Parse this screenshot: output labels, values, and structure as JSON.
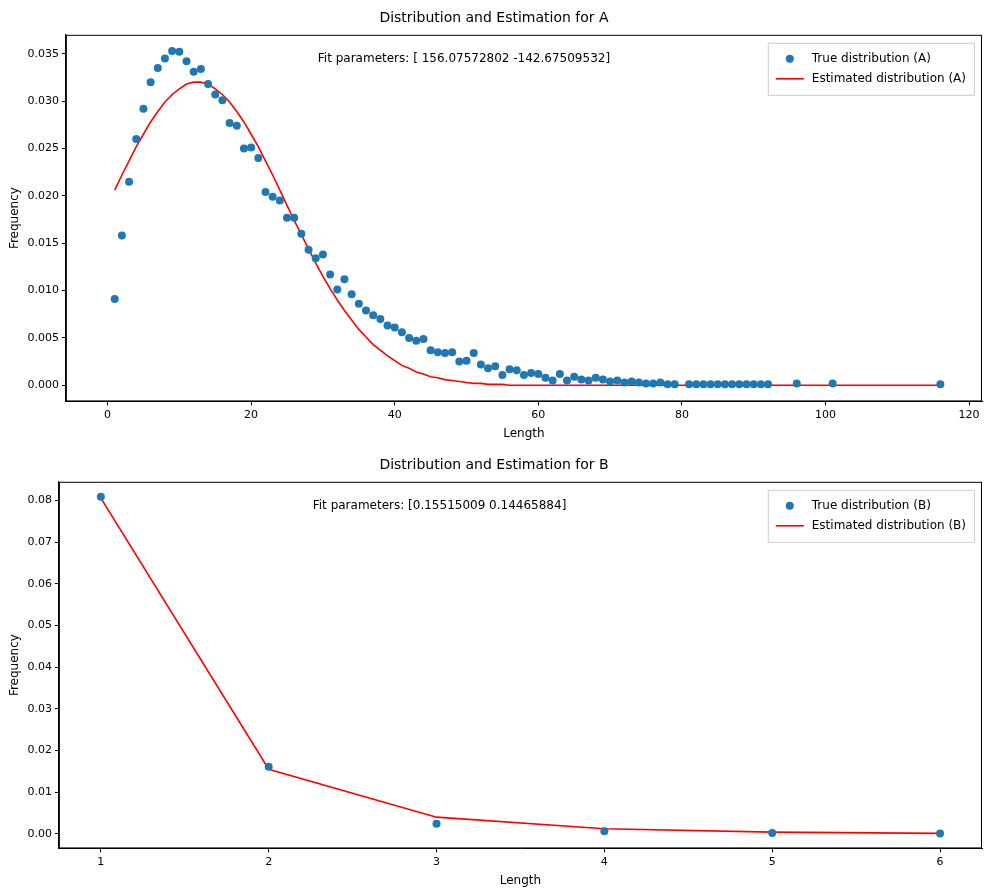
{
  "chart_data": [
    {
      "type": "scatter",
      "title": "Distribution and Estimation for A",
      "x_label": "Length",
      "y_label": "Frequency",
      "annotation": "Fit parameters: [ 156.07572802 -142.67509532]",
      "legend": "upper right",
      "grid": false,
      "xlim": [
        -5.8,
        121.8
      ],
      "xticks": [
        0,
        20,
        40,
        60,
        80,
        100,
        120
      ],
      "ylim": [
        -0.0017,
        0.037
      ],
      "yticks": [
        {
          "value": 0,
          "label": "0.000"
        },
        {
          "value": 0.005,
          "label": "0.005"
        },
        {
          "value": 0.01,
          "label": "0.010"
        },
        {
          "value": 0.015,
          "label": "0.015"
        },
        {
          "value": 0.02,
          "label": "0.020"
        },
        {
          "value": 0.025,
          "label": "0.025"
        },
        {
          "value": 0.03,
          "label": "0.030"
        },
        {
          "value": 0.035,
          "label": "0.035"
        }
      ],
      "x": [
        1,
        2,
        3,
        4,
        5,
        6,
        7,
        8,
        9,
        10,
        11,
        12,
        13,
        14,
        15,
        16,
        17,
        18,
        19,
        20,
        21,
        22,
        23,
        24,
        25,
        26,
        27,
        28,
        29,
        30,
        31,
        32,
        33,
        34,
        35,
        36,
        37,
        38,
        39,
        40,
        41,
        42,
        43,
        44,
        45,
        46,
        47,
        48,
        49,
        50,
        51,
        52,
        53,
        54,
        55,
        56,
        57,
        58,
        59,
        60,
        61,
        62,
        63,
        64,
        65,
        66,
        67,
        68,
        69,
        70,
        71,
        72,
        73,
        74,
        75,
        76,
        77,
        78,
        79,
        81,
        82,
        83,
        84,
        85,
        86,
        87,
        88,
        89,
        90,
        91,
        92,
        96,
        101,
        116
      ],
      "series": [
        {
          "name": "True distribution (A)",
          "color": "#1f77b4",
          "marker": "circle",
          "line_style": "none",
          "values": [
            0.0091,
            0.0158,
            0.0215,
            0.026,
            0.0292,
            0.032,
            0.0335,
            0.0345,
            0.0353,
            0.0352,
            0.0342,
            0.0331,
            0.0334,
            0.0318,
            0.0307,
            0.0301,
            0.0277,
            0.0274,
            0.025,
            0.0251,
            0.024,
            0.0204,
            0.0199,
            0.0195,
            0.0177,
            0.0177,
            0.016,
            0.0143,
            0.0134,
            0.0138,
            0.0117,
            0.0101,
            0.0112,
            0.0096,
            0.0086,
            0.0079,
            0.0074,
            0.007,
            0.0063,
            0.0061,
            0.0056,
            0.005,
            0.0047,
            0.0049,
            0.0037,
            0.0035,
            0.0034,
            0.0035,
            0.0025,
            0.0026,
            0.0034,
            0.0022,
            0.0018,
            0.002,
            0.0011,
            0.0017,
            0.0016,
            0.0011,
            0.0013,
            0.0012,
            0.0008,
            0.0005,
            0.0012,
            0.0005,
            0.0009,
            0.0006,
            0.0005,
            0.0008,
            0.0006,
            0.0004,
            0.0005,
            0.0003,
            0.0004,
            0.0003,
            0.0002,
            0.0002,
            0.0003,
            0.0001,
            0.0001,
            0.0001,
            0.0001,
            0.0001,
            0.0001,
            0.0001,
            0.0001,
            0.0001,
            0.0001,
            0.0001,
            0.0001,
            0.0001,
            0.0001,
            0.0002,
            0.0002,
            0.0001
          ]
        },
        {
          "name": "Estimated distribution (A)",
          "color": "#ff0000",
          "marker": "none",
          "line_style": "solid",
          "values": [
            0.0206,
            0.0222,
            0.0237,
            0.0252,
            0.0265,
            0.0278,
            0.0289,
            0.0299,
            0.0307,
            0.0313,
            0.0318,
            0.032,
            0.032,
            0.0318,
            0.0313,
            0.0307,
            0.0299,
            0.0289,
            0.0278,
            0.0265,
            0.0252,
            0.0237,
            0.0222,
            0.0206,
            0.019,
            0.0174,
            0.0159,
            0.0144,
            0.0129,
            0.0115,
            0.0102,
            0.009,
            0.0079,
            0.0069,
            0.0059,
            0.0051,
            0.0043,
            0.0037,
            0.0031,
            0.0026,
            0.0021,
            0.0018,
            0.0014,
            0.0012,
            0.0009,
            0.0008,
            0.0006,
            0.0005,
            0.0004,
            0.0003,
            0.0002,
            0.0002,
            0.0001,
            0.0001,
            0.0001,
            0,
            0,
            0,
            0,
            0,
            0,
            0,
            0,
            0,
            0,
            0,
            0,
            0,
            0,
            0,
            0,
            0,
            0,
            0,
            0,
            0,
            0,
            0,
            0,
            0,
            0,
            0,
            0,
            0,
            0,
            0,
            0,
            0,
            0,
            0,
            0,
            0,
            0,
            0
          ]
        }
      ]
    },
    {
      "type": "scatter",
      "title": "Distribution and Estimation for B",
      "x_label": "Length",
      "y_label": "Frequency",
      "annotation": "Fit parameters: [0.15515009 0.14465884]",
      "legend": "upper right",
      "grid": false,
      "xlim": [
        0.75,
        6.25
      ],
      "xticks": [
        1,
        2,
        3,
        4,
        5,
        6
      ],
      "ylim": [
        -0.0035,
        0.0845
      ],
      "yticks": [
        {
          "value": 0,
          "label": "0.00"
        },
        {
          "value": 0.01,
          "label": "0.01"
        },
        {
          "value": 0.02,
          "label": "0.02"
        },
        {
          "value": 0.03,
          "label": "0.03"
        },
        {
          "value": 0.04,
          "label": "0.04"
        },
        {
          "value": 0.05,
          "label": "0.05"
        },
        {
          "value": 0.06,
          "label": "0.06"
        },
        {
          "value": 0.07,
          "label": "0.07"
        },
        {
          "value": 0.08,
          "label": "0.08"
        }
      ],
      "x": [
        1,
        2,
        3,
        4,
        5,
        6
      ],
      "series": [
        {
          "name": "True distribution (B)",
          "color": "#1f77b4",
          "marker": "circle",
          "line_style": "none",
          "values": [
            0.0809,
            0.0161,
            0.0024,
            0.0006,
            0.0002,
            0.0001
          ]
        },
        {
          "name": "Estimated distribution (B)",
          "color": "#ff0000",
          "marker": "none",
          "line_style": "solid",
          "values": [
            0.0806,
            0.0155,
            0.004,
            0.0012,
            0.0004,
            0.0001
          ]
        }
      ]
    }
  ]
}
